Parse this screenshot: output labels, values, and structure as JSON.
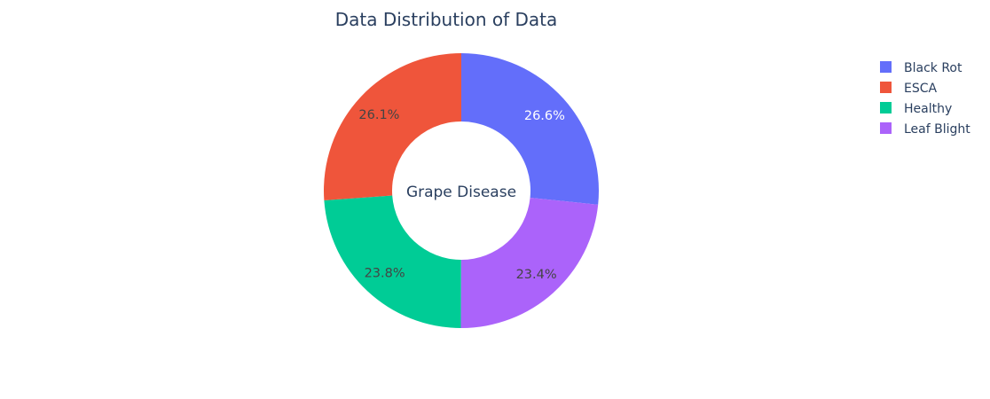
{
  "chart_data": {
    "type": "pie",
    "hole": true,
    "title": "Data Distribution of Data",
    "center_label": "Grape Disease",
    "legend_placement": "top-right",
    "categories": [
      "Black Rot",
      "ESCA",
      "Healthy",
      "Leaf Blight"
    ],
    "values": [
      26.6,
      26.1,
      23.8,
      23.4
    ],
    "value_labels": [
      "26.6%",
      "26.1%",
      "23.8%",
      "23.4%"
    ],
    "colors": [
      "#636efa",
      "#ef553b",
      "#00cc96",
      "#ab63fa"
    ],
    "label_colors": [
      "#ffffff",
      "#444444",
      "#444444",
      "#444444"
    ],
    "slice_order": [
      0,
      3,
      2,
      1
    ],
    "start_angle_deg": 0,
    "direction": "clockwise"
  }
}
